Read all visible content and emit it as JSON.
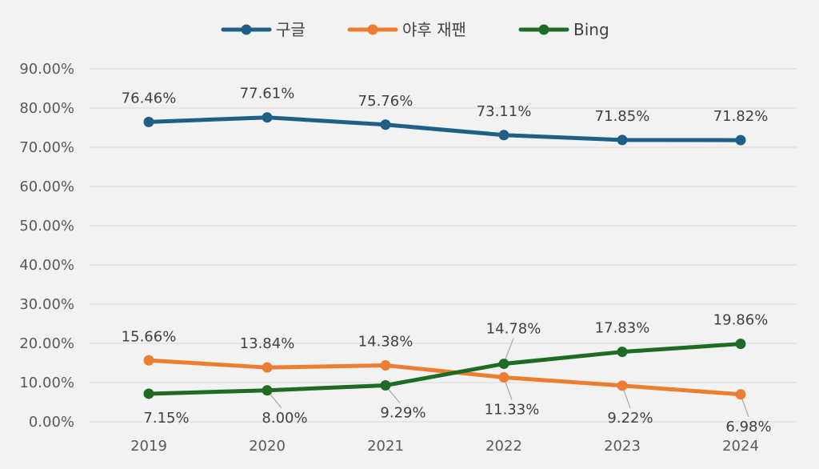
{
  "chart_data": {
    "type": "line",
    "title": "",
    "xlabel": "",
    "ylabel": "",
    "x": [
      "2019",
      "2020",
      "2021",
      "2022",
      "2023",
      "2024"
    ],
    "ylim": [
      0,
      0.9
    ],
    "y_ticks": [
      "0.00%",
      "10.00%",
      "20.00%",
      "30.00%",
      "40.00%",
      "50.00%",
      "60.00%",
      "70.00%",
      "80.00%",
      "90.00%"
    ],
    "grid": true,
    "legend_position": "top",
    "series": [
      {
        "name": "구글",
        "color": "#1f5f86",
        "values": [
          0.7646,
          0.7761,
          0.7576,
          0.7311,
          0.7185,
          0.7182
        ],
        "labels": [
          "76.46%",
          "77.61%",
          "75.76%",
          "73.11%",
          "71.85%",
          "71.82%"
        ]
      },
      {
        "name": "야후 재팬",
        "color": "#ed7d31",
        "values": [
          0.1566,
          0.1384,
          0.1438,
          0.1133,
          0.0922,
          0.0698
        ],
        "labels": [
          "15.66%",
          "13.84%",
          "14.38%",
          "11.33%",
          "9.22%",
          "6.98%"
        ]
      },
      {
        "name": "Bing",
        "color": "#1e6b24",
        "values": [
          0.0715,
          0.08,
          0.0929,
          0.1478,
          0.1783,
          0.1986
        ],
        "labels": [
          "7.15%",
          "8.00%",
          "9.29%",
          "14.78%",
          "17.83%",
          "19.86%"
        ]
      }
    ]
  }
}
